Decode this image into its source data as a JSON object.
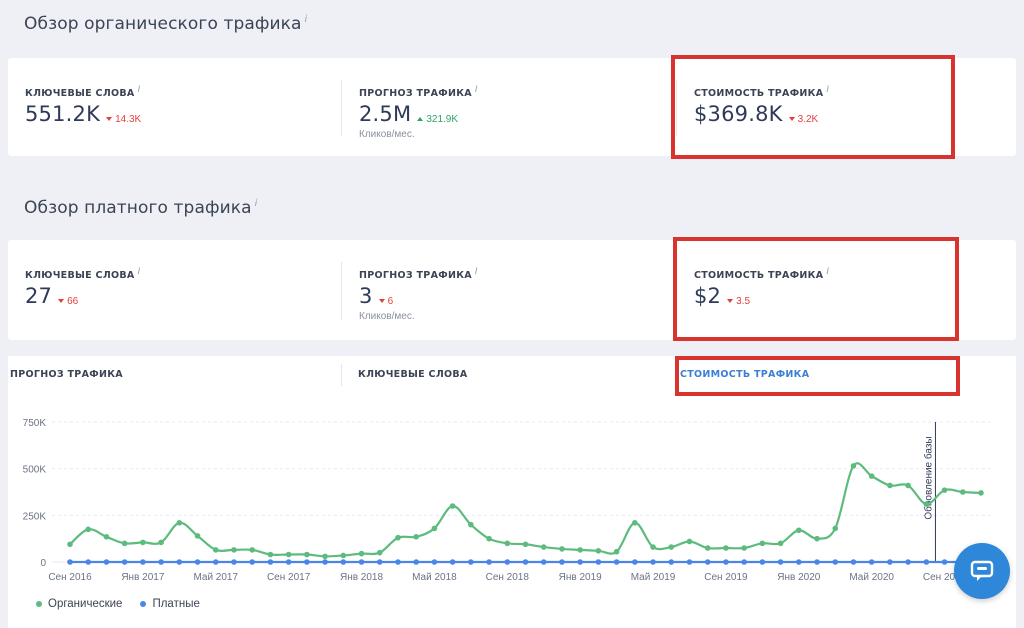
{
  "organic": {
    "title": "Обзор органического трафика",
    "info": "i",
    "metrics": [
      {
        "label": "КЛЮЧЕВЫЕ СЛОВА",
        "value": "551.2K",
        "delta": "14.3K",
        "sub": ""
      },
      {
        "label": "ПРОГНОЗ ТРАФИКА",
        "value": "2.5M",
        "delta": "321.9K",
        "sub": "Кликов/мес."
      },
      {
        "label": "СТОИМОСТЬ ТРАФИКА",
        "value": "$369.8K",
        "delta": "3.2K",
        "sub": ""
      }
    ]
  },
  "paid": {
    "title": "Обзор платного трафика",
    "info": "i",
    "metrics": [
      {
        "label": "КЛЮЧЕВЫЕ СЛОВА",
        "value": "27",
        "delta": "66",
        "sub": ""
      },
      {
        "label": "ПРОГНОЗ ТРАФИКА",
        "value": "3",
        "delta": "6",
        "sub": "Кликов/мес."
      },
      {
        "label": "СТОИМОСТЬ ТРАФИКА",
        "value": "$2",
        "delta": "3.5",
        "sub": ""
      }
    ]
  },
  "tabs": [
    "ПРОГНОЗ ТРАФИКА",
    "КЛЮЧЕВЫЕ СЛОВА",
    "СТОИМОСТЬ ТРАФИКА"
  ],
  "active_tab": "СТОИМОСТЬ ТРАФИКА",
  "colors": {
    "accent": "#3a7fd5",
    "organic": "#5dbb7e",
    "paid": "#4a86e8",
    "highlight": "#d8332f",
    "delta_down": "#e0413c",
    "delta_up": "#2fa36b"
  },
  "icons": {
    "chat": "chat-bubble-icon"
  },
  "chart_data": {
    "type": "line",
    "ylim": [
      0,
      750000
    ],
    "yticks": [
      0,
      250000,
      500000,
      750000
    ],
    "ytick_labels": [
      "0",
      "250K",
      "500K",
      "750K"
    ],
    "x_tick_labels": [
      "Сен 2016",
      "Янв 2017",
      "Май 2017",
      "Сен 2017",
      "Янв 2018",
      "Май 2018",
      "Сен 2018",
      "Янв 2019",
      "Май 2019",
      "Сен 2019",
      "Янв 2020",
      "Май 2020",
      "Сен 2020"
    ],
    "annotation": "Обновление базы",
    "legend": [
      "Органические",
      "Платные"
    ],
    "series": [
      {
        "name": "Органические",
        "values": [
          95000,
          175000,
          135000,
          100000,
          105000,
          105000,
          210000,
          140000,
          65000,
          65000,
          65000,
          40000,
          40000,
          40000,
          30000,
          35000,
          45000,
          50000,
          130000,
          135000,
          180000,
          300000,
          200000,
          125000,
          100000,
          95000,
          80000,
          70000,
          65000,
          60000,
          55000,
          210000,
          80000,
          80000,
          110000,
          75000,
          75000,
          75000,
          100000,
          100000,
          170000,
          125000,
          180000,
          515000,
          460000,
          410000,
          410000,
          310000,
          385000,
          375000,
          370000
        ]
      },
      {
        "name": "Платные",
        "values": [
          0,
          0,
          0,
          0,
          0,
          0,
          0,
          0,
          0,
          0,
          0,
          0,
          0,
          0,
          0,
          0,
          0,
          0,
          0,
          0,
          0,
          0,
          0,
          0,
          0,
          0,
          0,
          0,
          0,
          0,
          0,
          0,
          0,
          0,
          0,
          0,
          0,
          0,
          0,
          0,
          0,
          0,
          0,
          0,
          0,
          0,
          0,
          0,
          0,
          0,
          0
        ]
      }
    ]
  }
}
